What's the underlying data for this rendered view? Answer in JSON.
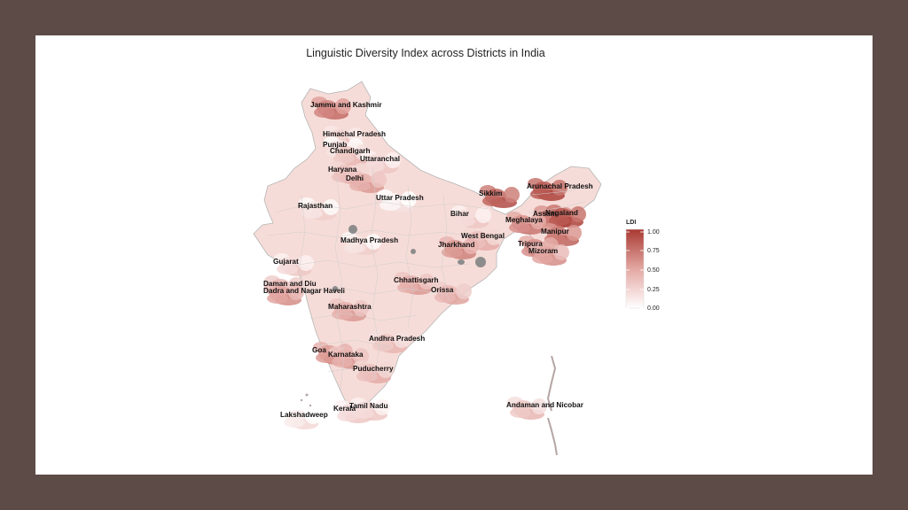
{
  "title": "Linguistic Diversity Index across Districts in India",
  "legend": {
    "title": "LDI",
    "ticks": [
      "1.00",
      "0.75",
      "0.50",
      "0.25",
      "0.00"
    ],
    "colors": {
      "low": "#ffffff",
      "high": "#a93a33"
    }
  },
  "colors": {
    "background": "#5d4b48",
    "panel": "#ffffff",
    "border": "#b5b5b5",
    "missing": "#8c8c8c"
  },
  "regions": [
    {
      "name": "Jammu and Kashmir",
      "ldi": 0.65
    },
    {
      "name": "Himachal Pradesh",
      "ldi": 0.25
    },
    {
      "name": "Punjab",
      "ldi": 0.15
    },
    {
      "name": "Chandigarh",
      "ldi": 0.3
    },
    {
      "name": "Uttaranchal",
      "ldi": 0.2
    },
    {
      "name": "Haryana",
      "ldi": 0.35
    },
    {
      "name": "Delhi",
      "ldi": 0.45
    },
    {
      "name": "Uttar Pradesh",
      "ldi": 0.05
    },
    {
      "name": "Rajasthan",
      "ldi": 0.15
    },
    {
      "name": "Sikkim",
      "ldi": 0.8
    },
    {
      "name": "Arunachal Pradesh",
      "ldi": 0.85
    },
    {
      "name": "Bihar",
      "ldi": 0.2
    },
    {
      "name": "Assam",
      "ldi": 0.7
    },
    {
      "name": "Nagaland",
      "ldi": 0.85
    },
    {
      "name": "Meghalaya",
      "ldi": 0.6
    },
    {
      "name": "Manipur",
      "ldi": 0.7
    },
    {
      "name": "West Bengal",
      "ldi": 0.35
    },
    {
      "name": "Jharkhand",
      "ldi": 0.55
    },
    {
      "name": "Tripura",
      "ldi": 0.6
    },
    {
      "name": "Mizoram",
      "ldi": 0.5
    },
    {
      "name": "Madhya Pradesh",
      "ldi": 0.15
    },
    {
      "name": "Gujarat",
      "ldi": 0.2
    },
    {
      "name": "Daman and Diu",
      "ldi": 0.4
    },
    {
      "name": "Dadra and Nagar Haveli",
      "ldi": 0.5
    },
    {
      "name": "Chhattisgarh",
      "ldi": 0.45
    },
    {
      "name": "Orissa",
      "ldi": 0.4
    },
    {
      "name": "Maharashtra",
      "ldi": 0.45
    },
    {
      "name": "Andhra Pradesh",
      "ldi": 0.3
    },
    {
      "name": "Goa",
      "ldi": 0.55
    },
    {
      "name": "Karnataka",
      "ldi": 0.45
    },
    {
      "name": "Puducherry",
      "ldi": 0.35
    },
    {
      "name": "Kerala",
      "ldi": 0.2
    },
    {
      "name": "Tamil Nadu",
      "ldi": 0.2
    },
    {
      "name": "Lakshadweep",
      "ldi": 0.1
    },
    {
      "name": "Andaman and Nicobar",
      "ldi": 0.3
    }
  ]
}
